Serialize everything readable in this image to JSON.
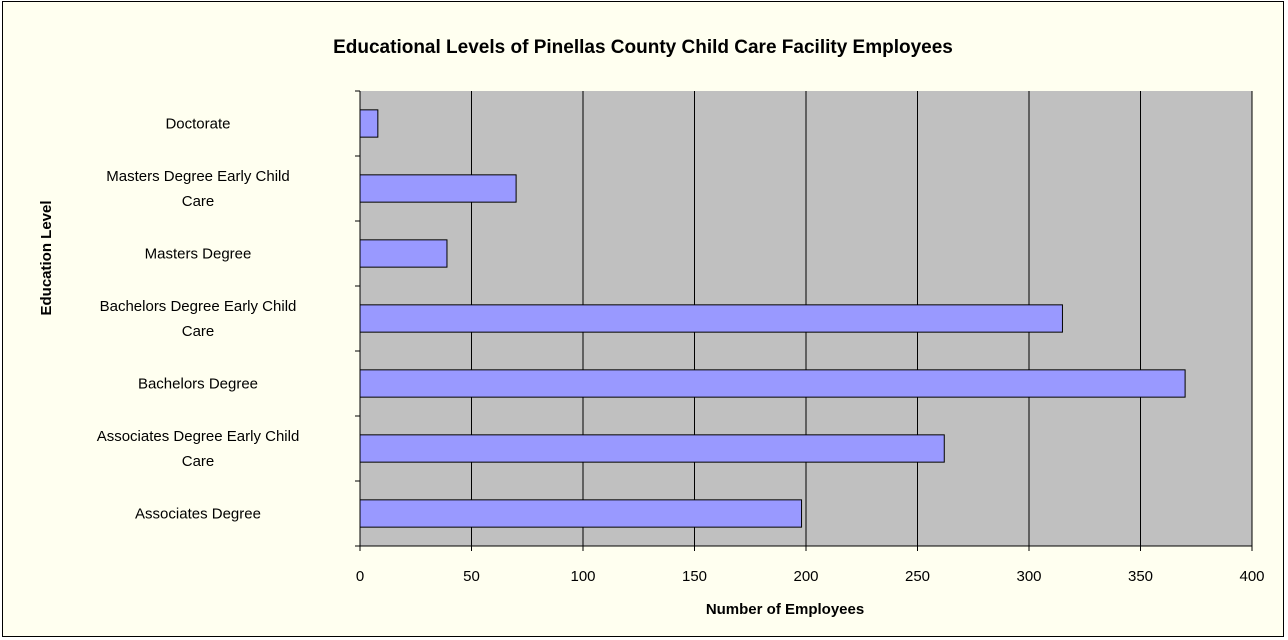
{
  "chart_data": {
    "type": "bar",
    "orientation": "horizontal",
    "title": "Educational Levels of Pinellas County Child Care Facility Employees",
    "xlabel": "Number of Employees",
    "ylabel": "Education Level",
    "categories": [
      "Associates Degree",
      "Associates Degree Early Child Care",
      "Bachelors Degree",
      "Bachelors Degree Early Child Care",
      "Masters Degree",
      "Masters Degree Early Child Care",
      "Doctorate"
    ],
    "category_lines": [
      [
        "Associates Degree"
      ],
      [
        "Associates Degree Early Child",
        "Care"
      ],
      [
        "Bachelors Degree"
      ],
      [
        "Bachelors Degree Early Child",
        "Care"
      ],
      [
        "Masters Degree"
      ],
      [
        "Masters Degree Early Child",
        "Care"
      ],
      [
        "Doctorate"
      ]
    ],
    "values": [
      198,
      262,
      370,
      315,
      39,
      70,
      8
    ],
    "xlim": [
      0,
      400
    ],
    "xticks": [
      0,
      50,
      100,
      150,
      200,
      250,
      300,
      350,
      400
    ],
    "grid": "vertical",
    "legend": "none",
    "colors": {
      "bar_fill": "#9999ff",
      "plot_background": "#c0c0c0",
      "frame_background": "#fffff0",
      "gridline": "#000000"
    }
  }
}
